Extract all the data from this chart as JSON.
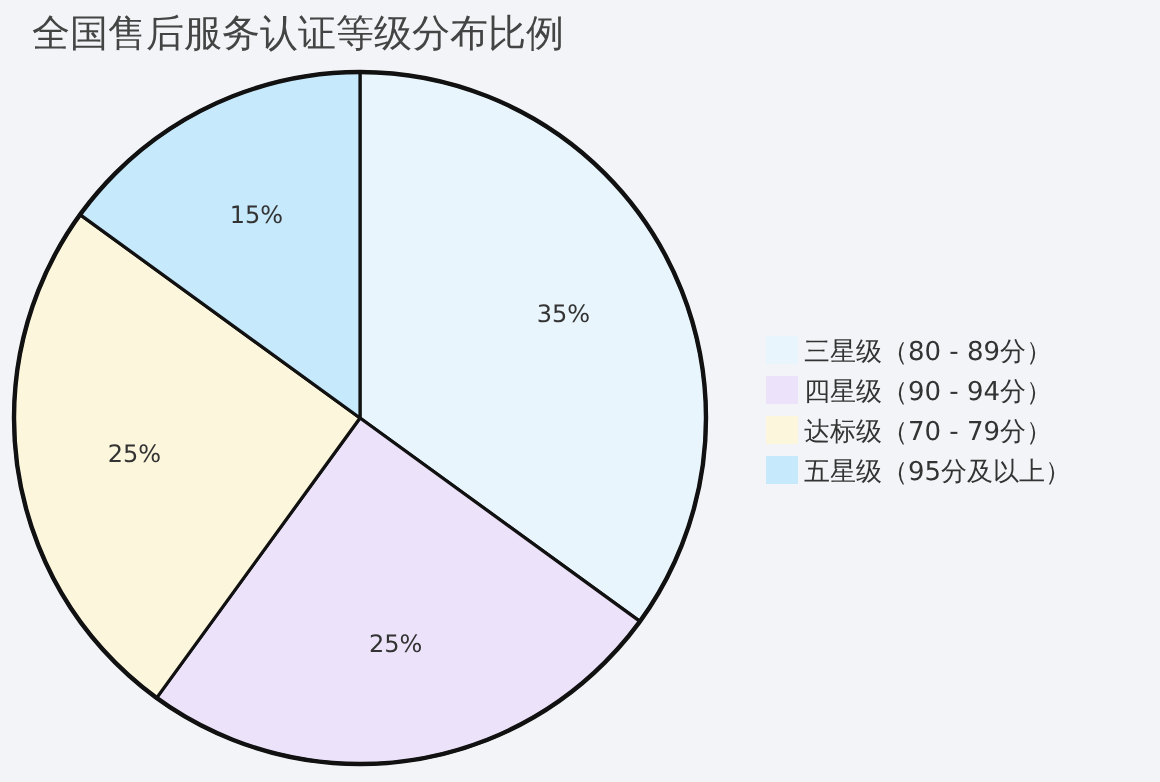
{
  "chart_data": {
    "type": "pie",
    "title": "全国售后服务认证等级分布比例",
    "categories": [
      "三星级（80 - 89分）",
      "四星级（90 - 94分）",
      "达标级（70 - 79分）",
      "五星级（95分及以上）"
    ],
    "values": [
      35,
      25,
      25,
      15
    ],
    "value_labels": [
      "35%",
      "25%",
      "25%",
      "15%"
    ],
    "colors": [
      "#e8f5fd",
      "#ece3fa",
      "#fcf6dc",
      "#c6e9fb"
    ],
    "legend": "right"
  }
}
